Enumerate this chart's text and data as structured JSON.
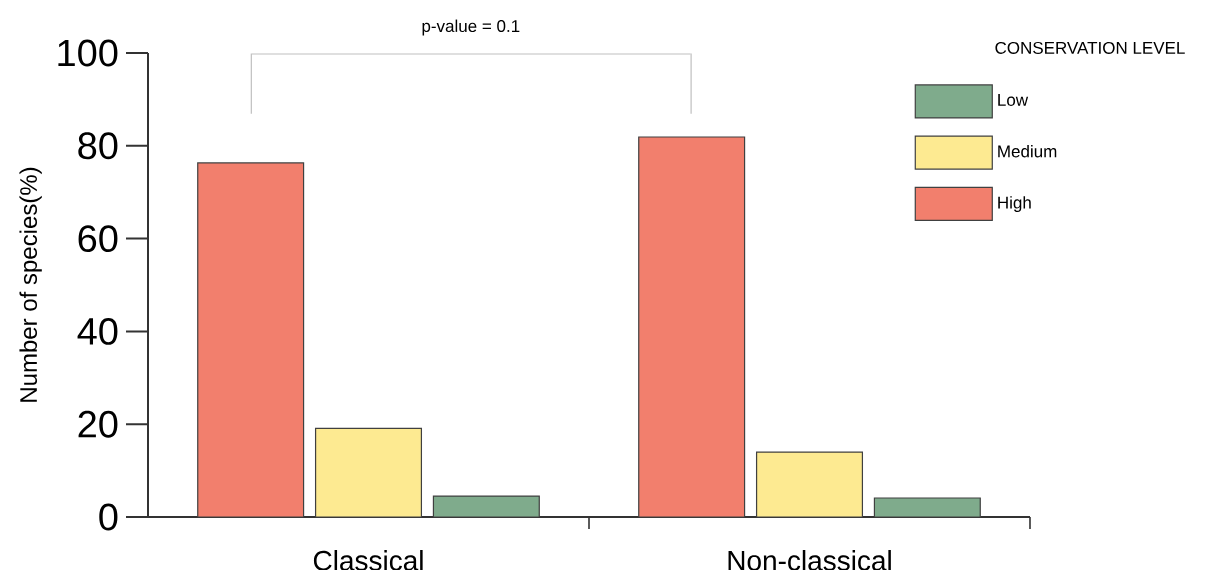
{
  "chart_data": {
    "type": "bar",
    "ylabel": "Number of species(%)",
    "legend_title": "CONSERVATION LEVEL",
    "annotations": [
      "p-value = 0.1"
    ],
    "categories": [
      "Classical",
      "Non-classical"
    ],
    "series": [
      {
        "name": "High",
        "color": "#f27f6d",
        "values": [
          76.3,
          81.9
        ]
      },
      {
        "name": "Medium",
        "color": "#fdea91",
        "values": [
          19.1,
          14.0
        ]
      },
      {
        "name": "Low",
        "color": "#7fab8c",
        "values": [
          4.5,
          4.1
        ]
      }
    ],
    "ylim": [
      0,
      100
    ],
    "yticks": [
      0,
      20,
      40,
      60,
      80,
      100
    ],
    "legend": "top right"
  }
}
